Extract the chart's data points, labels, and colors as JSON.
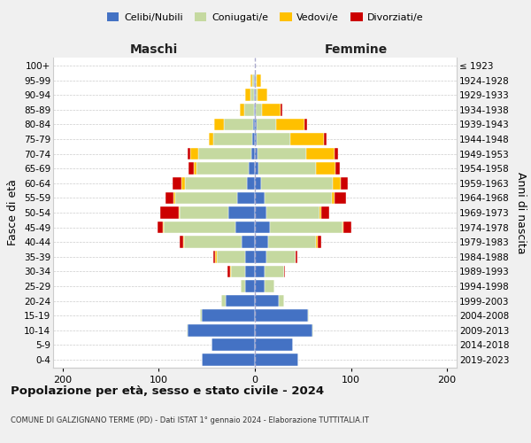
{
  "age_groups": [
    "0-4",
    "5-9",
    "10-14",
    "15-19",
    "20-24",
    "25-29",
    "30-34",
    "35-39",
    "40-44",
    "45-49",
    "50-54",
    "55-59",
    "60-64",
    "65-69",
    "70-74",
    "75-79",
    "80-84",
    "85-89",
    "90-94",
    "95-99",
    "100+"
  ],
  "birth_years": [
    "2019-2023",
    "2014-2018",
    "2009-2013",
    "2004-2008",
    "1999-2003",
    "1994-1998",
    "1989-1993",
    "1984-1988",
    "1979-1983",
    "1974-1978",
    "1969-1973",
    "1964-1968",
    "1959-1963",
    "1954-1958",
    "1949-1953",
    "1944-1948",
    "1939-1943",
    "1934-1938",
    "1929-1933",
    "1924-1928",
    "≤ 1923"
  ],
  "maschi": {
    "celibi": [
      55,
      45,
      70,
      55,
      30,
      10,
      10,
      10,
      14,
      20,
      28,
      18,
      8,
      6,
      4,
      3,
      2,
      1,
      1,
      1,
      0
    ],
    "coniugati": [
      0,
      0,
      1,
      2,
      5,
      5,
      15,
      30,
      60,
      75,
      50,
      65,
      65,
      55,
      55,
      40,
      30,
      10,
      4,
      2,
      0
    ],
    "vedovi": [
      0,
      0,
      0,
      0,
      0,
      0,
      1,
      1,
      1,
      1,
      1,
      2,
      3,
      3,
      8,
      5,
      10,
      5,
      5,
      2,
      0
    ],
    "divorziati": [
      0,
      0,
      0,
      0,
      0,
      0,
      3,
      2,
      3,
      5,
      20,
      8,
      10,
      5,
      3,
      0,
      0,
      0,
      0,
      0,
      0
    ]
  },
  "femmine": {
    "nubili": [
      45,
      40,
      60,
      55,
      25,
      10,
      10,
      12,
      14,
      16,
      12,
      10,
      6,
      4,
      3,
      2,
      2,
      1,
      1,
      1,
      0
    ],
    "coniugate": [
      0,
      0,
      1,
      1,
      5,
      10,
      20,
      30,
      50,
      75,
      55,
      70,
      75,
      60,
      50,
      35,
      20,
      6,
      2,
      1,
      0
    ],
    "vedove": [
      0,
      0,
      0,
      0,
      0,
      0,
      0,
      0,
      1,
      1,
      2,
      3,
      8,
      20,
      30,
      35,
      30,
      20,
      10,
      4,
      0
    ],
    "divorziate": [
      0,
      0,
      0,
      0,
      0,
      0,
      1,
      2,
      4,
      8,
      8,
      12,
      8,
      4,
      4,
      3,
      2,
      2,
      0,
      0,
      0
    ]
  },
  "colors": {
    "celibi_nubili": "#4472c4",
    "coniugati": "#c5d9a0",
    "vedovi": "#ffc000",
    "divorziati": "#cc0000"
  },
  "xlim": 210,
  "title": "Popolazione per età, sesso e stato civile - 2024",
  "subtitle": "COMUNE DI GALZIGNANO TERME (PD) - Dati ISTAT 1° gennaio 2024 - Elaborazione TUTTITALIA.IT",
  "ylabel_left": "Fasce di età",
  "ylabel_right": "Anni di nascita",
  "xlabel_left": "Maschi",
  "xlabel_right": "Femmine",
  "bg_color": "#f0f0f0",
  "plot_bg": "#ffffff"
}
